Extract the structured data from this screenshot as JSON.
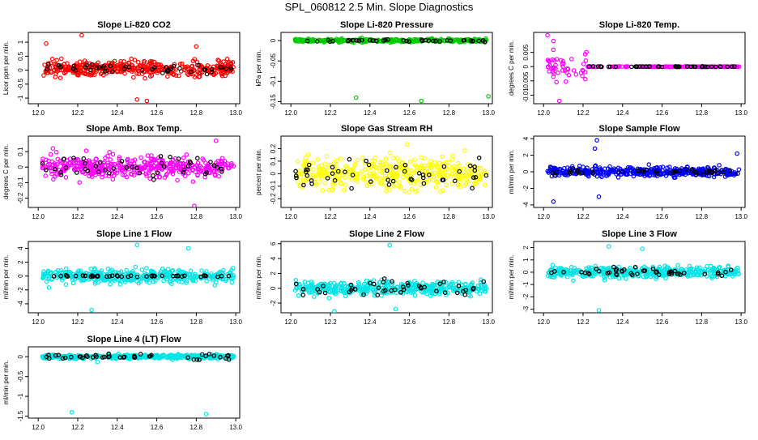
{
  "page": {
    "title": "SPL_060812  2.5 Min. Slope Diagnostics"
  },
  "chart_data": [
    {
      "type": "scatter",
      "title": "Slope Li-820 CO2",
      "ylabel": "Licor ppm per min.",
      "xlim": [
        11.95,
        13.02
      ],
      "ylim": [
        -1.2,
        1.35
      ],
      "yticks": [
        -1.0,
        -0.5,
        0.0,
        0.5,
        1.0
      ],
      "xticks": [
        "12.0",
        "12.2",
        "12.4",
        "12.6",
        "12.8",
        "13.0"
      ],
      "series": [
        {
          "name": "all",
          "color": "#ff0000",
          "x_range": [
            12.02,
            12.99
          ],
          "center": 0.05,
          "spread": 0.22,
          "count": 420,
          "outliers": [
            [
              12.22,
              1.25
            ],
            [
              12.04,
              0.95
            ],
            [
              12.5,
              -1.05
            ],
            [
              12.55,
              -1.1
            ],
            [
              12.8,
              0.85
            ]
          ]
        },
        {
          "name": "subset",
          "color": "#000000",
          "x_range": [
            12.02,
            12.99
          ],
          "center": 0.05,
          "spread": 0.15,
          "count": 45
        }
      ]
    },
    {
      "type": "scatter",
      "title": "Slope Li-820 Pressure",
      "ylabel": "kPa per min.",
      "xlim": [
        11.95,
        13.02
      ],
      "ylim": [
        -0.155,
        0.02
      ],
      "yticks": [
        -0.15,
        -0.1,
        -0.05,
        0.0
      ],
      "xticks": [
        "12.0",
        "12.2",
        "12.4",
        "12.6",
        "12.8",
        "13.0"
      ],
      "series": [
        {
          "name": "all",
          "color": "#00cc00",
          "x_range": [
            12.02,
            12.99
          ],
          "center": 0.0,
          "spread": 0.003,
          "count": 320,
          "outliers": [
            [
              12.33,
              -0.14
            ],
            [
              12.66,
              -0.148
            ],
            [
              13.0,
              -0.137
            ]
          ]
        },
        {
          "name": "subset",
          "color": "#000000",
          "x_range": [
            12.02,
            12.99
          ],
          "center": 0.0,
          "spread": 0.002,
          "count": 40
        }
      ]
    },
    {
      "type": "scatter",
      "title": "Slope Li-820 Temp.",
      "ylabel": "degrees C per min.",
      "xlim": [
        11.95,
        13.02
      ],
      "ylim": [
        -0.013,
        0.012
      ],
      "yticks": [
        -0.01,
        -0.005,
        0.0,
        0.005
      ],
      "xticks": [
        "12.0",
        "12.2",
        "12.4",
        "12.6",
        "12.8",
        "13.0"
      ],
      "series": [
        {
          "name": "all",
          "color": "#ff00ff",
          "x_range": [
            12.02,
            12.99
          ],
          "center": 0.0,
          "spread": 0.004,
          "count": 200,
          "settle_x": 12.22,
          "outliers": [
            [
              12.02,
              0.011
            ],
            [
              12.08,
              -0.012
            ],
            [
              12.05,
              0.009
            ]
          ]
        },
        {
          "name": "subset",
          "color": "#000000",
          "x_range": [
            12.22,
            12.99
          ],
          "center": 0.0,
          "spread": 0.0001,
          "count": 45
        }
      ]
    },
    {
      "type": "scatter",
      "title": "Slope Amb. Box Temp.",
      "ylabel": "degrees C per min.",
      "xlim": [
        11.95,
        13.02
      ],
      "ylim": [
        -0.26,
        0.2
      ],
      "yticks": [
        -0.2,
        -0.1,
        0.0,
        0.1
      ],
      "xticks": [
        "12.0",
        "12.2",
        "12.4",
        "12.6",
        "12.8",
        "13.0"
      ],
      "series": [
        {
          "name": "all",
          "color": "#ff00ff",
          "x_range": [
            12.02,
            12.99
          ],
          "center": 0.0,
          "spread": 0.06,
          "count": 420,
          "outliers": [
            [
              12.79,
              -0.25
            ],
            [
              12.9,
              0.17
            ]
          ]
        },
        {
          "name": "subset",
          "color": "#000000",
          "x_range": [
            12.02,
            12.99
          ],
          "center": 0.0,
          "spread": 0.06,
          "count": 45
        }
      ]
    },
    {
      "type": "scatter",
      "title": "Slope Gas Stream RH",
      "ylabel": "percent per min.",
      "xlim": [
        11.95,
        13.02
      ],
      "ylim": [
        -0.27,
        0.3
      ],
      "yticks": [
        -0.2,
        -0.1,
        0.0,
        0.1,
        0.2
      ],
      "xticks": [
        "12.0",
        "12.2",
        "12.4",
        "12.6",
        "12.8",
        "13.0"
      ],
      "series": [
        {
          "name": "all",
          "color": "#ffff00",
          "x_range": [
            12.02,
            12.99
          ],
          "center": 0.0,
          "spread": 0.1,
          "count": 420
        },
        {
          "name": "subset",
          "color": "#000000",
          "x_range": [
            12.02,
            12.99
          ],
          "center": 0.0,
          "spread": 0.08,
          "count": 50
        }
      ]
    },
    {
      "type": "scatter",
      "title": "Slope Sample Flow",
      "ylabel": "ml/min per min.",
      "xlim": [
        11.95,
        13.02
      ],
      "ylim": [
        -4.3,
        4.3
      ],
      "yticks": [
        -4,
        -2,
        0,
        2,
        4
      ],
      "xticks": [
        "12.0",
        "12.2",
        "12.4",
        "12.6",
        "12.8",
        "13.0"
      ],
      "series": [
        {
          "name": "all",
          "color": "#0000ff",
          "x_range": [
            12.02,
            12.99
          ],
          "center": 0.0,
          "spread": 0.45,
          "count": 420,
          "outliers": [
            [
              12.27,
              3.8
            ],
            [
              12.28,
              -3.0
            ],
            [
              12.26,
              2.8
            ],
            [
              12.98,
              2.2
            ],
            [
              12.05,
              -3.6
            ]
          ]
        },
        {
          "name": "subset",
          "color": "#000000",
          "x_range": [
            12.02,
            12.99
          ],
          "center": 0.0,
          "spread": 0.3,
          "count": 45
        }
      ]
    },
    {
      "type": "scatter",
      "title": "Slope Line 1 Flow",
      "ylabel": "ml/min per min.",
      "xlim": [
        11.95,
        13.02
      ],
      "ylim": [
        -5.3,
        5.0
      ],
      "yticks": [
        -4,
        -2,
        0,
        2,
        4
      ],
      "xticks": [
        "12.0",
        "12.2",
        "12.4",
        "12.6",
        "12.8",
        "13.0"
      ],
      "series": [
        {
          "name": "all",
          "color": "#00e5e5",
          "x_range": [
            12.02,
            12.99
          ],
          "center": 0.0,
          "spread": 0.8,
          "count": 420,
          "outliers": [
            [
              12.27,
              -4.9
            ],
            [
              12.5,
              4.5
            ],
            [
              12.76,
              4.0
            ]
          ]
        },
        {
          "name": "subset",
          "color": "#000000",
          "x_range": [
            12.02,
            12.99
          ],
          "center": 0.0,
          "spread": 0.1,
          "count": 45
        }
      ]
    },
    {
      "type": "scatter",
      "title": "Slope Line 2 Flow",
      "ylabel": "ml/min per min.",
      "xlim": [
        11.95,
        13.02
      ],
      "ylim": [
        -3.3,
        6.3
      ],
      "yticks": [
        -2,
        0,
        2,
        4,
        6
      ],
      "xticks": [
        "12.0",
        "12.2",
        "12.4",
        "12.6",
        "12.8",
        "13.0"
      ],
      "series": [
        {
          "name": "all",
          "color": "#00e5e5",
          "x_range": [
            12.02,
            12.99
          ],
          "center": 0.0,
          "spread": 0.7,
          "count": 420,
          "outliers": [
            [
              12.5,
              5.8
            ],
            [
              12.22,
              -3.1
            ],
            [
              12.53,
              -2.8
            ]
          ]
        },
        {
          "name": "subset",
          "color": "#000000",
          "x_range": [
            12.02,
            12.99
          ],
          "center": 0.0,
          "spread": 0.9,
          "count": 45
        }
      ]
    },
    {
      "type": "scatter",
      "title": "Slope Line 3 Flow",
      "ylabel": "ml/min per min.",
      "xlim": [
        11.95,
        13.02
      ],
      "ylim": [
        -3.3,
        2.5
      ],
      "yticks": [
        -3,
        -2,
        -1,
        0,
        1,
        2
      ],
      "xticks": [
        "12.0",
        "12.2",
        "12.4",
        "12.6",
        "12.8",
        "13.0"
      ],
      "series": [
        {
          "name": "all",
          "color": "#00e5e5",
          "x_range": [
            12.02,
            12.99
          ],
          "center": 0.0,
          "spread": 0.35,
          "count": 420,
          "outliers": [
            [
              12.28,
              -3.1
            ],
            [
              12.33,
              2.1
            ],
            [
              12.5,
              1.9
            ]
          ]
        },
        {
          "name": "subset",
          "color": "#000000",
          "x_range": [
            12.02,
            12.99
          ],
          "center": 0.0,
          "spread": 0.3,
          "count": 45
        }
      ]
    },
    {
      "type": "scatter",
      "title": "Slope Line 4 (LT) Flow",
      "ylabel": "ml/min per min.",
      "xlim": [
        11.95,
        13.02
      ],
      "ylim": [
        -1.55,
        0.25
      ],
      "yticks": [
        -1.5,
        -1.0,
        -0.5,
        0.0
      ],
      "xticks": [
        "12.0",
        "12.2",
        "12.4",
        "12.6",
        "12.8",
        "13.0"
      ],
      "series": [
        {
          "name": "all",
          "color": "#00e5e5",
          "x_range": [
            12.02,
            12.99
          ],
          "center": 0.0,
          "spread": 0.04,
          "count": 420,
          "outliers": [
            [
              12.17,
              -1.4
            ],
            [
              12.85,
              -1.45
            ],
            [
              12.3,
              -0.13
            ]
          ]
        },
        {
          "name": "subset",
          "color": "#000000",
          "x_range": [
            12.02,
            12.99
          ],
          "center": 0.0,
          "spread": 0.06,
          "count": 45
        }
      ]
    }
  ]
}
